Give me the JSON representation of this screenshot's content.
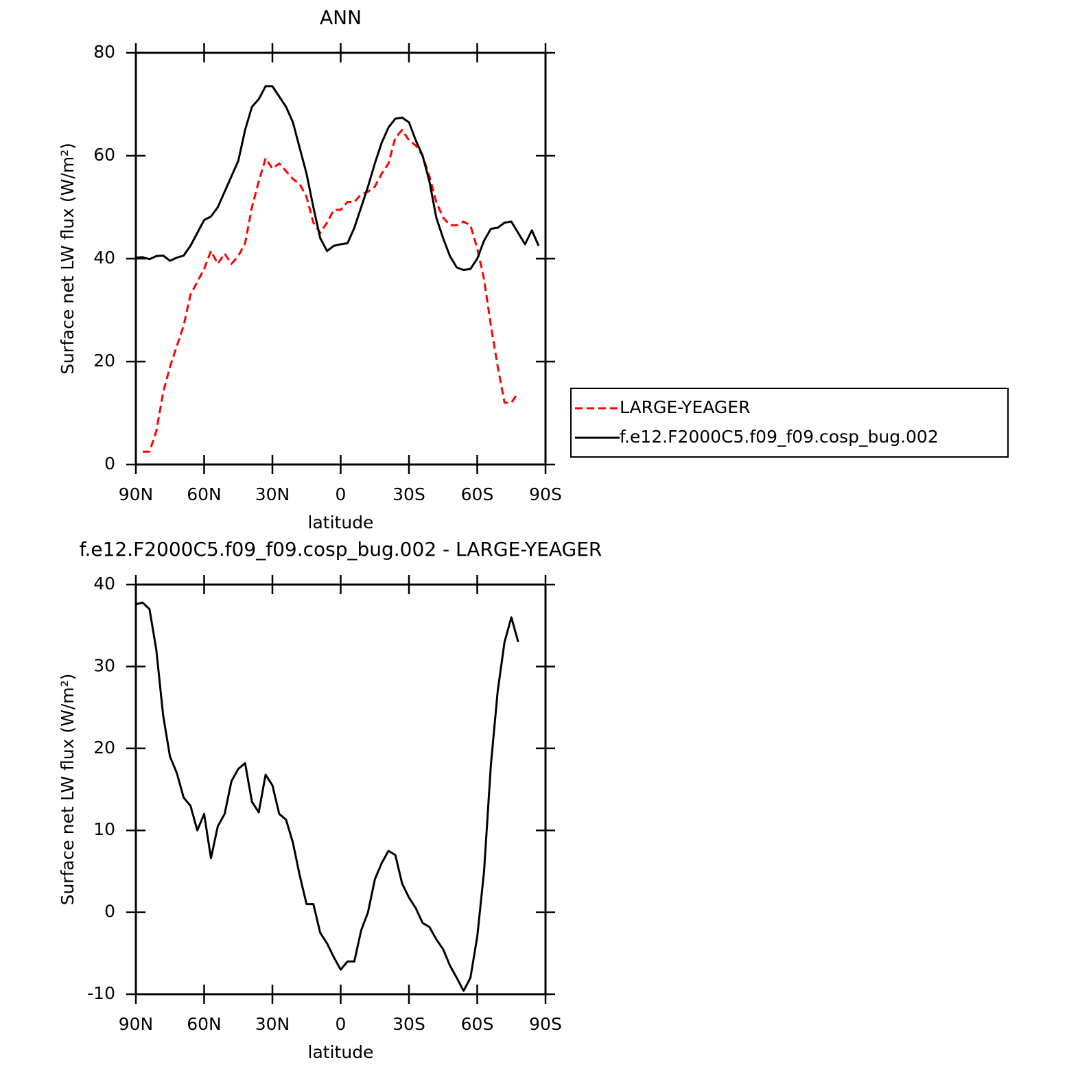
{
  "chart_data": [
    {
      "type": "line",
      "title": "ANN",
      "xlabel": "latitude",
      "ylabel": "Surface net LW flux (W/m²)",
      "x": [
        90,
        87,
        84,
        81,
        78,
        75,
        72,
        69,
        66,
        63,
        60,
        57,
        54,
        51,
        48,
        45,
        42,
        39,
        36,
        33,
        30,
        27,
        24,
        21,
        18,
        15,
        12,
        9,
        6,
        3,
        0,
        -3,
        -6,
        -9,
        -12,
        -15,
        -18,
        -21,
        -24,
        -27,
        -30,
        -33,
        -36,
        -39,
        -42,
        -45,
        -48,
        -51,
        -54,
        -57,
        -60,
        -63,
        -66,
        -69,
        -72,
        -75,
        -78,
        -81,
        -84,
        -87,
        -90
      ],
      "series": [
        {
          "name": "LARGE-YEAGER",
          "color": "#ff0000",
          "dash": true,
          "values": [
            null,
            2.5,
            2.5,
            6.5,
            14,
            19,
            23,
            27,
            33,
            35.5,
            38,
            41.5,
            39,
            41,
            39,
            40.5,
            43,
            50,
            55,
            59.5,
            57.5,
            58.5,
            57,
            55.5,
            54.5,
            52,
            47,
            45,
            47,
            49.5,
            49.5,
            51,
            51,
            52.5,
            53,
            54,
            56.5,
            58.5,
            63.5,
            65,
            63,
            62,
            60,
            56,
            51,
            48,
            46.5,
            46.5,
            47.2,
            46.5,
            42,
            36,
            27,
            19,
            12,
            12,
            14,
            null,
            null,
            null,
            null
          ]
        },
        {
          "name": "f.e12.F2000C5.f09_f09.cosp_bug.002",
          "color": "#000000",
          "dash": false,
          "values": [
            40.2,
            40.3,
            39.9,
            40.5,
            40.6,
            39.6,
            40.2,
            40.6,
            42.5,
            45,
            47.5,
            48.2,
            50,
            53,
            56,
            59,
            65,
            69.5,
            71,
            73.5,
            73.5,
            71.5,
            69.5,
            66.5,
            61.5,
            56.5,
            50,
            44,
            41.5,
            42.5,
            42.8,
            43,
            46,
            50,
            54,
            58.5,
            62.5,
            65.5,
            67.2,
            67.4,
            66.5,
            63,
            60,
            55,
            48,
            44,
            40.5,
            38.3,
            37.8,
            38,
            40,
            43.5,
            45.8,
            46,
            47,
            47.2,
            45,
            42.8,
            45.5,
            42.5,
            null
          ]
        }
      ],
      "xlim": [
        90,
        -90
      ],
      "xticks": [
        {
          "value": 90,
          "label": "90N"
        },
        {
          "value": 60,
          "label": "60N"
        },
        {
          "value": 30,
          "label": "30N"
        },
        0,
        {
          "value": -30,
          "label": "30S"
        },
        {
          "value": -60,
          "label": "60S"
        },
        {
          "value": -90,
          "label": "90S"
        }
      ],
      "ylim": [
        0,
        80
      ],
      "yticks": [
        0,
        20,
        40,
        60,
        80
      ],
      "legend": "right"
    },
    {
      "type": "line",
      "title": "f.e12.F2000C5.f09_f09.cosp_bug.002 - LARGE-YEAGER",
      "xlabel": "latitude",
      "ylabel": "Surface net LW flux (W/m²)",
      "x": [
        90,
        87,
        84,
        81,
        78,
        75,
        72,
        69,
        66,
        63,
        60,
        57,
        54,
        51,
        48,
        45,
        42,
        39,
        36,
        33,
        30,
        27,
        24,
        21,
        18,
        15,
        12,
        9,
        6,
        3,
        0,
        -3,
        -6,
        -9,
        -12,
        -15,
        -18,
        -21,
        -24,
        -27,
        -30,
        -33,
        -36,
        -39,
        -42,
        -45,
        -48,
        -51,
        -54,
        -57,
        -60,
        -63,
        -66,
        -69,
        -72,
        -75,
        -78,
        -81,
        -84,
        -87,
        -90
      ],
      "series": [
        {
          "color": "#000000",
          "dash": false,
          "values": [
            37.6,
            37.8,
            37,
            32,
            24,
            19,
            17,
            14,
            13,
            10,
            12,
            6.6,
            10.5,
            12,
            16,
            17.5,
            18.2,
            13.5,
            12.2,
            16.8,
            15.5,
            12,
            11.3,
            8.5,
            4.5,
            1,
            1,
            -2.5,
            -3.8,
            -5.5,
            -7,
            -6,
            -6,
            -2.2,
            0,
            4,
            6,
            7.5,
            7,
            3.5,
            1.8,
            0.5,
            -1.3,
            -1.8,
            -3.3,
            -4.5,
            -6.5,
            -8,
            -9.6,
            -8,
            -3,
            5,
            18,
            27,
            33,
            36,
            33,
            null,
            null,
            null,
            null
          ]
        }
      ],
      "xlim": [
        90,
        -90
      ],
      "xticks": [
        {
          "value": 90,
          "label": "90N"
        },
        {
          "value": 60,
          "label": "60N"
        },
        {
          "value": 30,
          "label": "30N"
        },
        0,
        {
          "value": -30,
          "label": "30S"
        },
        {
          "value": -60,
          "label": "60S"
        },
        {
          "value": -90,
          "label": "90S"
        }
      ],
      "ylim": [
        -10,
        40
      ],
      "yticks": [
        -10,
        0,
        10,
        20,
        30,
        40
      ]
    }
  ]
}
